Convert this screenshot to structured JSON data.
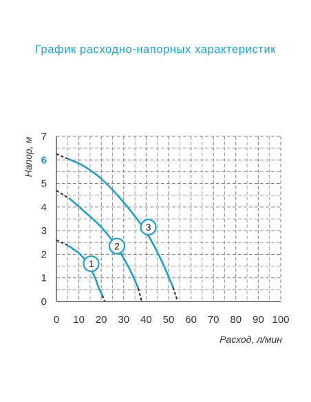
{
  "page": {
    "title": "График расходно-напорных характеристик"
  },
  "chart_data": {
    "type": "line",
    "title": "График расходно-напорных характеристик",
    "xlabel": "Расход, л/мин",
    "ylabel": "Напор, м",
    "xlim": [
      0,
      100
    ],
    "ylim": [
      0,
      7
    ],
    "x_ticks": [
      "0",
      "10",
      "20",
      "30",
      "40",
      "50",
      "60",
      "70",
      "80",
      "90",
      "100"
    ],
    "y_ticks": [
      "0",
      "1",
      "2",
      "3",
      "4",
      "5",
      "6",
      "7"
    ],
    "highlighted_y_tick": "6",
    "grid": true,
    "grid_style": "dashed",
    "series": [
      {
        "marker_label": "1",
        "color": "#1e9fd0",
        "dashed_start": [
          [
            0,
            2.6
          ],
          [
            5,
            2.38
          ]
        ],
        "solid": [
          [
            5,
            2.38
          ],
          [
            10,
            2.05
          ],
          [
            14,
            1.6
          ],
          [
            17,
            1.05
          ],
          [
            19,
            0.55
          ],
          [
            20.5,
            0.25
          ]
        ],
        "dashed_end": [
          [
            20.5,
            0.25
          ],
          [
            21.5,
            0.02
          ]
        ],
        "marker_at": [
          15.5,
          1.6
        ]
      },
      {
        "marker_label": "2",
        "color": "#1e9fd0",
        "dashed_start": [
          [
            0,
            4.7
          ],
          [
            6,
            4.35
          ]
        ],
        "solid": [
          [
            6,
            4.35
          ],
          [
            12,
            3.85
          ],
          [
            20,
            3.15
          ],
          [
            27,
            2.3
          ],
          [
            33,
            1.3
          ],
          [
            36.5,
            0.55
          ]
        ],
        "dashed_end": [
          [
            36.5,
            0.55
          ],
          [
            38,
            0.02
          ]
        ],
        "marker_at": [
          27,
          2.35
        ]
      },
      {
        "marker_label": "3",
        "color": "#1e9fd0",
        "dashed_start": [
          [
            0,
            6.25
          ],
          [
            5,
            6.05
          ]
        ],
        "solid": [
          [
            5,
            6.05
          ],
          [
            12,
            5.75
          ],
          [
            20,
            5.2
          ],
          [
            30,
            4.2
          ],
          [
            40,
            2.95
          ],
          [
            47,
            1.7
          ],
          [
            52,
            0.6
          ]
        ],
        "dashed_end": [
          [
            52,
            0.6
          ],
          [
            54,
            0.02
          ]
        ],
        "marker_at": [
          41,
          3.15
        ]
      }
    ]
  }
}
